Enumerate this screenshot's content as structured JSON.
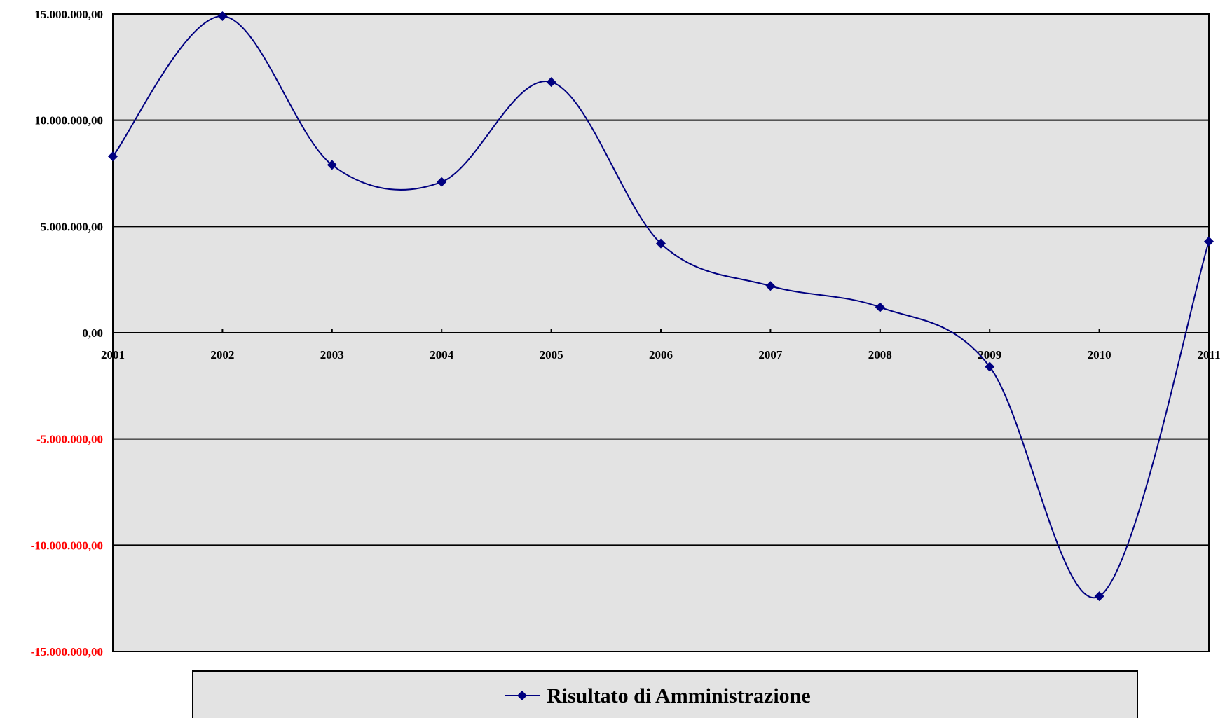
{
  "chart_data": {
    "type": "line",
    "smooth": true,
    "x": [
      "2001",
      "2002",
      "2003",
      "2004",
      "2005",
      "2006",
      "2007",
      "2008",
      "2009",
      "2010",
      "2011"
    ],
    "series": [
      {
        "name": "Risultato di Amministrazione",
        "values": [
          8300000,
          14900000,
          7900000,
          7100000,
          11800000,
          4200000,
          2200000,
          1200000,
          -1600000,
          -12400000,
          4300000
        ],
        "color": "#000080",
        "marker": "diamond"
      }
    ],
    "ylim": [
      -15000000,
      15000000
    ],
    "yticks": [
      15000000,
      10000000,
      5000000,
      0,
      -5000000,
      -10000000,
      -15000000
    ],
    "ytick_labels": [
      "15.000.000,00",
      "10.000.000,00",
      "5.000.000,00",
      "0,00",
      "-5.000.000,00",
      "-10.000.000,00",
      "-15.000.000,00"
    ],
    "positive_label_color": "#000000",
    "negative_label_color": "#ff0000",
    "plot_background": "#e3e3e3",
    "grid": true,
    "legend_position": "bottom"
  }
}
